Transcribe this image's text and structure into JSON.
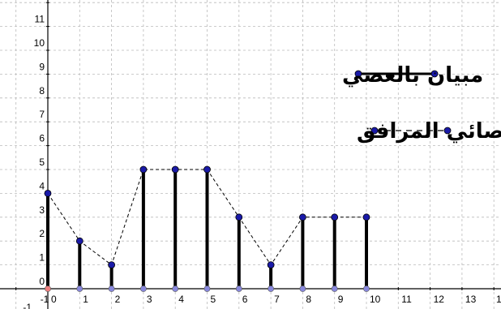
{
  "chart_data": {
    "type": "bar",
    "title": "",
    "xlabel": "",
    "ylabel": "",
    "xlim": [
      -1,
      14
    ],
    "ylim": [
      -1,
      12
    ],
    "grid": true,
    "x_ticks": [
      "-1",
      "0",
      "1",
      "2",
      "3",
      "4",
      "5",
      "6",
      "7",
      "8",
      "9",
      "10",
      "11",
      "12",
      "13",
      "1"
    ],
    "y_ticks": [
      "-1",
      "0",
      "1",
      "2",
      "3",
      "4",
      "5",
      "6",
      "7",
      "8",
      "9",
      "10",
      "11"
    ],
    "x": [
      0,
      1,
      2,
      3,
      4,
      5,
      6,
      7,
      8,
      9,
      10
    ],
    "values": [
      4,
      2,
      1,
      5,
      5,
      5,
      3,
      1,
      3,
      3,
      3
    ],
    "series": [
      {
        "name": "مبيان بالعصي",
        "style": "sticks",
        "color": "#000000"
      },
      {
        "name": "المضلع الاحصائي المرافق",
        "style": "dashed-polygon",
        "color": "#000000"
      }
    ],
    "legend": "top-right",
    "colors": {
      "point": "#1a1aa8",
      "base_point": "#8888dd",
      "origin_point": "#f08080",
      "grid": "#bbbbbb"
    }
  }
}
